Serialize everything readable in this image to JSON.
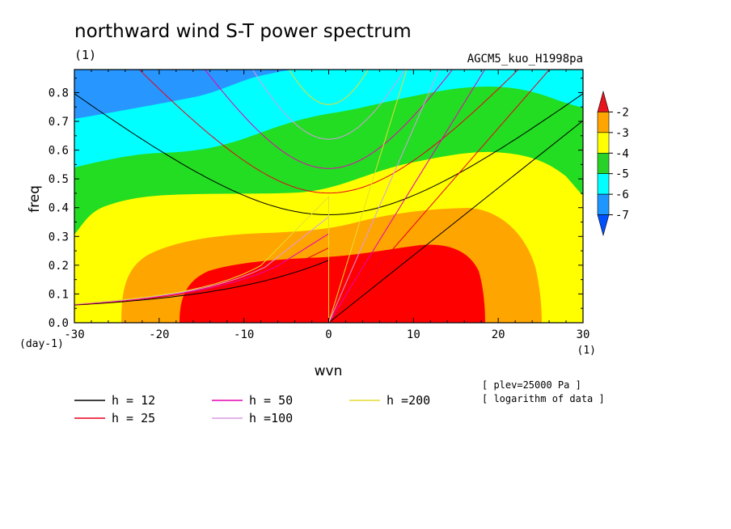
{
  "chart_data": {
    "type": "heatmap",
    "title": "northward wind S-T power spectrum",
    "subtitle_left": "(1)",
    "subtitle_right": "AGCM5_kuo_H1998pa",
    "xlabel": "wvn",
    "ylabel": "freq",
    "x_unit": "(1)",
    "y_unit": "(day-1)",
    "xlim": [
      -30,
      30
    ],
    "ylim": [
      0,
      0.88
    ],
    "x_ticks": [
      -30,
      -20,
      -10,
      0,
      10,
      20,
      30
    ],
    "x_tick_labels": [
      "-30",
      "-20",
      "-10",
      "0",
      "10",
      "20",
      "30"
    ],
    "y_ticks": [
      0,
      0.1,
      0.2,
      0.3,
      0.4,
      0.5,
      0.6,
      0.7,
      0.8
    ],
    "y_tick_labels": [
      "0.0",
      "0.1",
      "0.2",
      "0.3",
      "0.4",
      "0.5",
      "0.6",
      "0.7",
      "0.8"
    ],
    "colorbar": {
      "levels": [
        "-2",
        "-3",
        "-4",
        "-5",
        "-6",
        "-7"
      ],
      "colors": [
        "#e8141e",
        "#ffa400",
        "#ffff00",
        "#28d228",
        "#00ffff",
        "#1e96ff",
        "#0050ff"
      ]
    },
    "contour_fill_colors": {
      "gt_-3": "#ff0000",
      "-4_to_-3": "#ffa500",
      "-5_to_-4": "#ffff00",
      "-6_to_-5": "#22dd22",
      "-7_to_-6": "#00ffff",
      "lt_-7": "#2797ff"
    },
    "dispersion_curves": [
      {
        "h": 12,
        "label": "h = 12",
        "color": "#000000"
      },
      {
        "h": 25,
        "label": "h = 25",
        "color": "#e8001e"
      },
      {
        "h": 50,
        "label": "h = 50",
        "color": "#e600b4"
      },
      {
        "h": 100,
        "label": "h =100",
        "color": "#dc9ae6"
      },
      {
        "h": 200,
        "label": "h =200",
        "color": "#e6dc32"
      }
    ],
    "notes": [
      "[ plev=25000 Pa ]",
      "[ logarithm of data ]"
    ]
  }
}
